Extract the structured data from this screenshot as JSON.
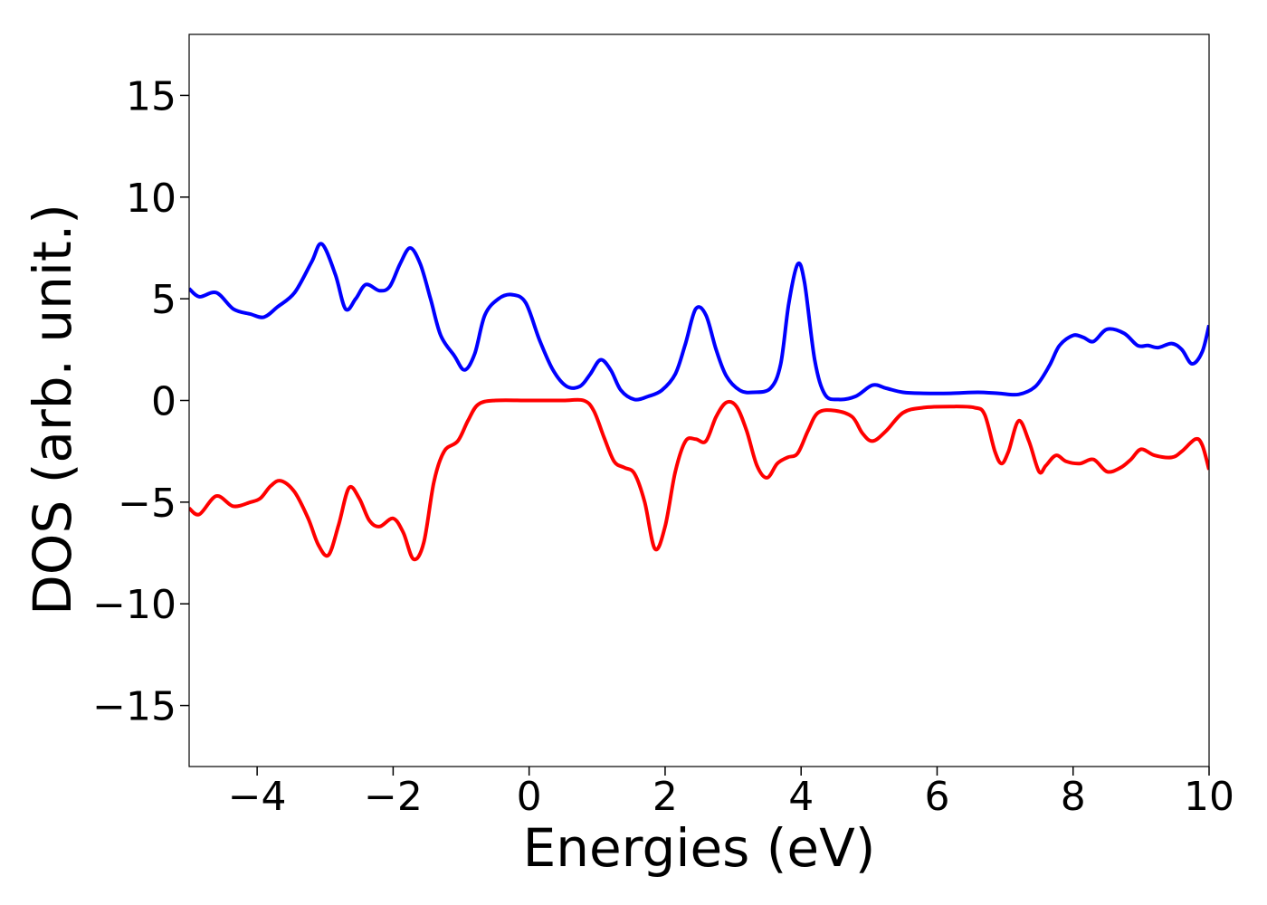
{
  "chart_data": {
    "type": "line",
    "title": "",
    "xlabel": "Energies (eV)",
    "ylabel": "DOS (arb. unit.)",
    "xlim": [
      -5,
      10
    ],
    "ylim": [
      -18,
      18
    ],
    "grid": false,
    "legend": "none",
    "xticks": [
      -4,
      -2,
      0,
      2,
      4,
      6,
      8,
      10
    ],
    "xtick_labels": [
      "−4",
      "−2",
      "0",
      "2",
      "4",
      "6",
      "8",
      "10"
    ],
    "yticks": [
      15,
      10,
      5,
      0,
      -5,
      -10,
      -15
    ],
    "ytick_labels": [
      "15",
      "10",
      "5",
      "0",
      "−5",
      "−10",
      "−15"
    ],
    "series": [
      {
        "color": "#0000ff",
        "points": [
          [
            -5.0,
            5.5
          ],
          [
            -4.85,
            5.1
          ],
          [
            -4.6,
            5.3
          ],
          [
            -4.35,
            4.5
          ],
          [
            -4.1,
            4.25
          ],
          [
            -3.9,
            4.1
          ],
          [
            -3.7,
            4.6
          ],
          [
            -3.45,
            5.3
          ],
          [
            -3.2,
            6.8
          ],
          [
            -3.05,
            7.7
          ],
          [
            -2.85,
            6.2
          ],
          [
            -2.7,
            4.5
          ],
          [
            -2.55,
            5.0
          ],
          [
            -2.4,
            5.7
          ],
          [
            -2.2,
            5.4
          ],
          [
            -2.05,
            5.6
          ],
          [
            -1.9,
            6.7
          ],
          [
            -1.75,
            7.5
          ],
          [
            -1.6,
            6.7
          ],
          [
            -1.45,
            5.0
          ],
          [
            -1.3,
            3.2
          ],
          [
            -1.1,
            2.2
          ],
          [
            -0.95,
            1.5
          ],
          [
            -0.8,
            2.3
          ],
          [
            -0.65,
            4.2
          ],
          [
            -0.45,
            5.0
          ],
          [
            -0.25,
            5.2
          ],
          [
            -0.05,
            4.8
          ],
          [
            0.15,
            3.0
          ],
          [
            0.35,
            1.5
          ],
          [
            0.55,
            0.7
          ],
          [
            0.75,
            0.7
          ],
          [
            0.9,
            1.3
          ],
          [
            1.05,
            2.0
          ],
          [
            1.2,
            1.5
          ],
          [
            1.35,
            0.5
          ],
          [
            1.55,
            0.05
          ],
          [
            1.75,
            0.2
          ],
          [
            1.95,
            0.5
          ],
          [
            2.15,
            1.3
          ],
          [
            2.3,
            2.8
          ],
          [
            2.45,
            4.5
          ],
          [
            2.6,
            4.2
          ],
          [
            2.75,
            2.5
          ],
          [
            2.9,
            1.2
          ],
          [
            3.1,
            0.5
          ],
          [
            3.3,
            0.4
          ],
          [
            3.55,
            0.6
          ],
          [
            3.7,
            1.8
          ],
          [
            3.82,
            4.8
          ],
          [
            3.95,
            6.7
          ],
          [
            4.05,
            5.8
          ],
          [
            4.2,
            2.0
          ],
          [
            4.35,
            0.3
          ],
          [
            4.55,
            0.05
          ],
          [
            4.8,
            0.2
          ],
          [
            5.05,
            0.75
          ],
          [
            5.25,
            0.6
          ],
          [
            5.5,
            0.4
          ],
          [
            5.8,
            0.35
          ],
          [
            6.2,
            0.35
          ],
          [
            6.6,
            0.4
          ],
          [
            6.9,
            0.35
          ],
          [
            7.2,
            0.3
          ],
          [
            7.45,
            0.7
          ],
          [
            7.65,
            1.7
          ],
          [
            7.8,
            2.7
          ],
          [
            8.0,
            3.2
          ],
          [
            8.15,
            3.1
          ],
          [
            8.3,
            2.9
          ],
          [
            8.5,
            3.5
          ],
          [
            8.75,
            3.3
          ],
          [
            8.95,
            2.7
          ],
          [
            9.1,
            2.7
          ],
          [
            9.25,
            2.6
          ],
          [
            9.45,
            2.8
          ],
          [
            9.6,
            2.5
          ],
          [
            9.75,
            1.8
          ],
          [
            9.9,
            2.4
          ],
          [
            10.0,
            3.7
          ]
        ]
      },
      {
        "color": "#ff0000",
        "points": [
          [
            -5.0,
            -5.3
          ],
          [
            -4.85,
            -5.6
          ],
          [
            -4.6,
            -4.7
          ],
          [
            -4.35,
            -5.2
          ],
          [
            -4.1,
            -5.0
          ],
          [
            -3.95,
            -4.8
          ],
          [
            -3.8,
            -4.2
          ],
          [
            -3.65,
            -3.95
          ],
          [
            -3.45,
            -4.5
          ],
          [
            -3.25,
            -5.8
          ],
          [
            -3.1,
            -7.1
          ],
          [
            -2.95,
            -7.6
          ],
          [
            -2.8,
            -6.1
          ],
          [
            -2.65,
            -4.3
          ],
          [
            -2.5,
            -4.8
          ],
          [
            -2.35,
            -5.9
          ],
          [
            -2.2,
            -6.2
          ],
          [
            -2.0,
            -5.8
          ],
          [
            -1.85,
            -6.5
          ],
          [
            -1.7,
            -7.8
          ],
          [
            -1.55,
            -7.0
          ],
          [
            -1.4,
            -4.0
          ],
          [
            -1.25,
            -2.5
          ],
          [
            -1.05,
            -2.0
          ],
          [
            -0.9,
            -1.0
          ],
          [
            -0.75,
            -0.2
          ],
          [
            -0.5,
            0.0
          ],
          [
            0.0,
            0.0
          ],
          [
            0.5,
            0.0
          ],
          [
            0.8,
            0.0
          ],
          [
            0.95,
            -0.5
          ],
          [
            1.1,
            -1.8
          ],
          [
            1.25,
            -3.0
          ],
          [
            1.4,
            -3.3
          ],
          [
            1.55,
            -3.6
          ],
          [
            1.7,
            -5.0
          ],
          [
            1.85,
            -7.3
          ],
          [
            2.0,
            -6.2
          ],
          [
            2.15,
            -3.5
          ],
          [
            2.3,
            -2.0
          ],
          [
            2.45,
            -1.9
          ],
          [
            2.6,
            -2.0
          ],
          [
            2.75,
            -0.8
          ],
          [
            2.9,
            -0.1
          ],
          [
            3.05,
            -0.3
          ],
          [
            3.2,
            -1.5
          ],
          [
            3.35,
            -3.2
          ],
          [
            3.5,
            -3.8
          ],
          [
            3.65,
            -3.1
          ],
          [
            3.8,
            -2.8
          ],
          [
            3.95,
            -2.6
          ],
          [
            4.1,
            -1.5
          ],
          [
            4.25,
            -0.6
          ],
          [
            4.5,
            -0.5
          ],
          [
            4.75,
            -0.8
          ],
          [
            4.9,
            -1.6
          ],
          [
            5.05,
            -2.0
          ],
          [
            5.25,
            -1.5
          ],
          [
            5.5,
            -0.6
          ],
          [
            5.8,
            -0.35
          ],
          [
            6.2,
            -0.3
          ],
          [
            6.55,
            -0.35
          ],
          [
            6.7,
            -0.7
          ],
          [
            6.85,
            -2.5
          ],
          [
            6.95,
            -3.1
          ],
          [
            7.05,
            -2.5
          ],
          [
            7.2,
            -1.0
          ],
          [
            7.35,
            -2.0
          ],
          [
            7.5,
            -3.5
          ],
          [
            7.6,
            -3.2
          ],
          [
            7.75,
            -2.7
          ],
          [
            7.9,
            -3.0
          ],
          [
            8.1,
            -3.1
          ],
          [
            8.3,
            -2.9
          ],
          [
            8.5,
            -3.5
          ],
          [
            8.7,
            -3.3
          ],
          [
            8.85,
            -2.9
          ],
          [
            9.0,
            -2.4
          ],
          [
            9.2,
            -2.7
          ],
          [
            9.45,
            -2.8
          ],
          [
            9.6,
            -2.5
          ],
          [
            9.8,
            -1.9
          ],
          [
            9.9,
            -2.2
          ],
          [
            10.0,
            -3.4
          ]
        ]
      }
    ]
  }
}
